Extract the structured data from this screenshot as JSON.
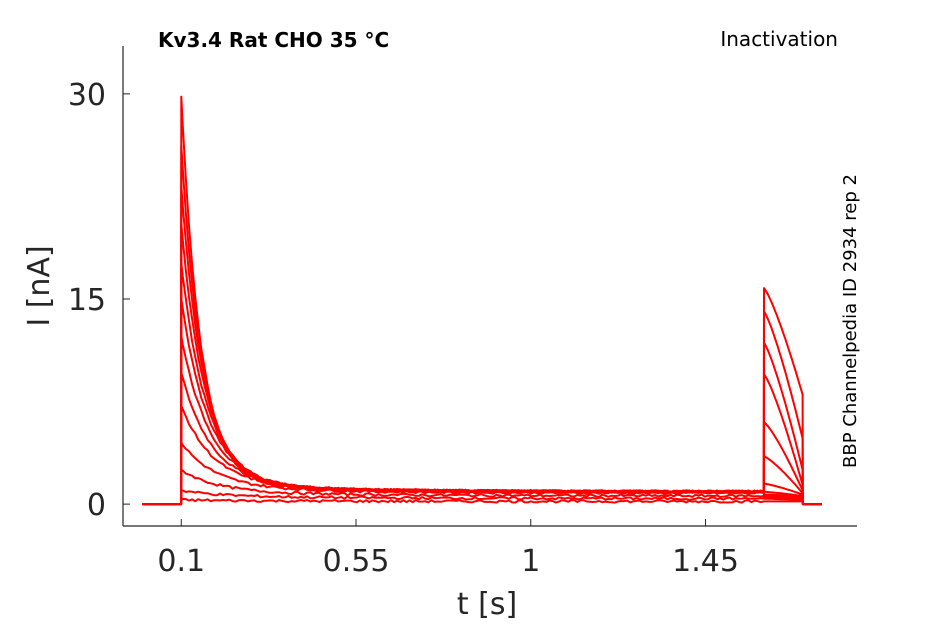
{
  "chart_data": {
    "type": "line",
    "title": "Kv3.4  Rat  CHO  35 °C",
    "protocol_label": "Inactivation",
    "source_label": "BBP Channelpedia ID 2934 rep 2",
    "xlabel": "t [s]",
    "ylabel": "I [nA]",
    "xlim": [
      -0.05,
      1.84
    ],
    "ylim": [
      -1.6,
      33.5
    ],
    "x_ticks": [
      0.1,
      0.55,
      1,
      1.45
    ],
    "x_tick_labels": [
      "0.1",
      "0.55",
      "1",
      "1.45"
    ],
    "y_ticks": [
      0,
      15,
      30
    ],
    "y_tick_labels": [
      "0",
      "15",
      "30"
    ],
    "grid": false,
    "legend": "none",
    "color": "#ff0000",
    "pulse_start": 0.1,
    "pulse_end": 1.6,
    "test_end": 1.7,
    "recording_start": 0.0,
    "recording_end": 1.75,
    "series": [
      {
        "peak": 29.8,
        "steady": 0.9,
        "test_peak": 15.8,
        "test_end": 8.0
      },
      {
        "peak": 26.2,
        "steady": 0.9,
        "test_peak": 14.1,
        "test_end": 4.8
      },
      {
        "peak": 23.3,
        "steady": 0.9,
        "test_peak": 11.8,
        "test_end": 2.5
      },
      {
        "peak": 20.5,
        "steady": 0.9,
        "test_peak": 9.5,
        "test_end": 1.4
      },
      {
        "peak": 17.6,
        "steady": 0.9,
        "test_peak": 6.0,
        "test_end": 1.0
      },
      {
        "peak": 15.0,
        "steady": 0.9,
        "test_peak": 3.5,
        "test_end": 0.8
      },
      {
        "peak": 12.3,
        "steady": 0.9,
        "test_peak": 1.5,
        "test_end": 0.7
      },
      {
        "peak": 9.6,
        "steady": 0.9,
        "test_peak": 0.9,
        "test_end": 0.6
      },
      {
        "peak": 7.2,
        "steady": 0.9,
        "test_peak": 0.7,
        "test_end": 0.6
      },
      {
        "peak": 4.5,
        "steady": 0.8,
        "test_peak": 0.6,
        "test_end": 0.5
      },
      {
        "peak": 2.5,
        "steady": 0.6,
        "test_peak": 0.5,
        "test_end": 0.4
      },
      {
        "peak": 1.0,
        "steady": 0.4,
        "test_peak": 0.4,
        "test_end": 0.3
      },
      {
        "peak": 0.3,
        "steady": 0.2,
        "test_peak": 0.2,
        "test_end": 0.2
      }
    ]
  }
}
